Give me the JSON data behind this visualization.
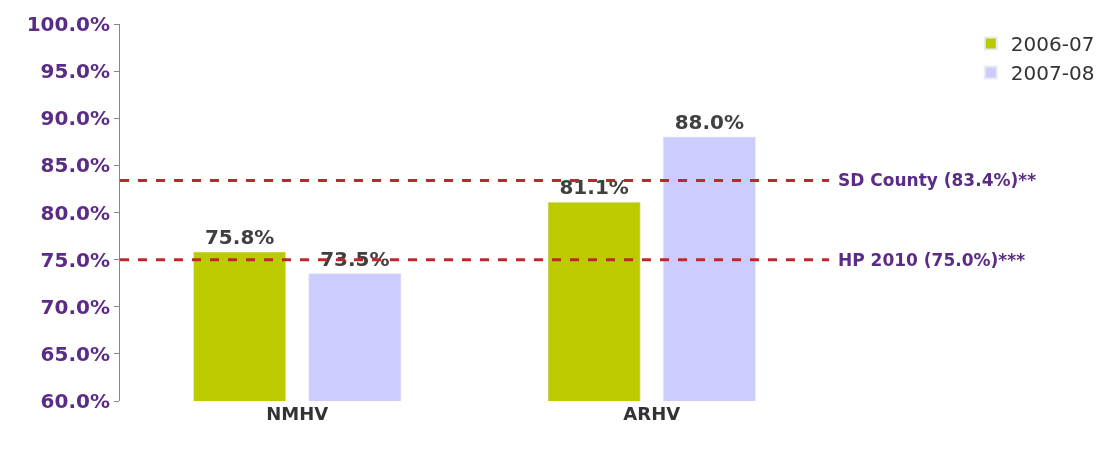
{
  "chart_data": {
    "type": "bar",
    "categories": [
      "NMHV",
      "ARHV"
    ],
    "series": [
      {
        "name": "2006-07",
        "color": "#bccb00",
        "values": [
          75.8,
          81.1
        ]
      },
      {
        "name": "2007-08",
        "color": "#ccccff",
        "values": [
          73.5,
          88.0
        ]
      }
    ],
    "ylim": [
      60,
      100
    ],
    "yticks": [
      {
        "value": 60,
        "label": "60.0%"
      },
      {
        "value": 65,
        "label": "65.0%"
      },
      {
        "value": 70,
        "label": "70.0%"
      },
      {
        "value": 75,
        "label": "75.0%"
      },
      {
        "value": 80,
        "label": "80.0%"
      },
      {
        "value": 85,
        "label": "85.0%"
      },
      {
        "value": 90,
        "label": "90.0%"
      },
      {
        "value": 95,
        "label": "95.0%"
      },
      {
        "value": 100,
        "label": "100.0%"
      }
    ],
    "value_labels": [
      [
        "75.8%",
        "81.1%"
      ],
      [
        "73.5%",
        "88.0%"
      ]
    ],
    "ref_lines": [
      {
        "axis": "y",
        "value": 83.4,
        "label": "SD County (83.4%)**",
        "color": "#c0272d",
        "line_style": "dashed"
      },
      {
        "axis": "y",
        "value": 75.0,
        "label": "HP 2010 (75.0%)***",
        "color": "#c0272d",
        "line_style": "dashed"
      }
    ],
    "legend": "top right"
  }
}
